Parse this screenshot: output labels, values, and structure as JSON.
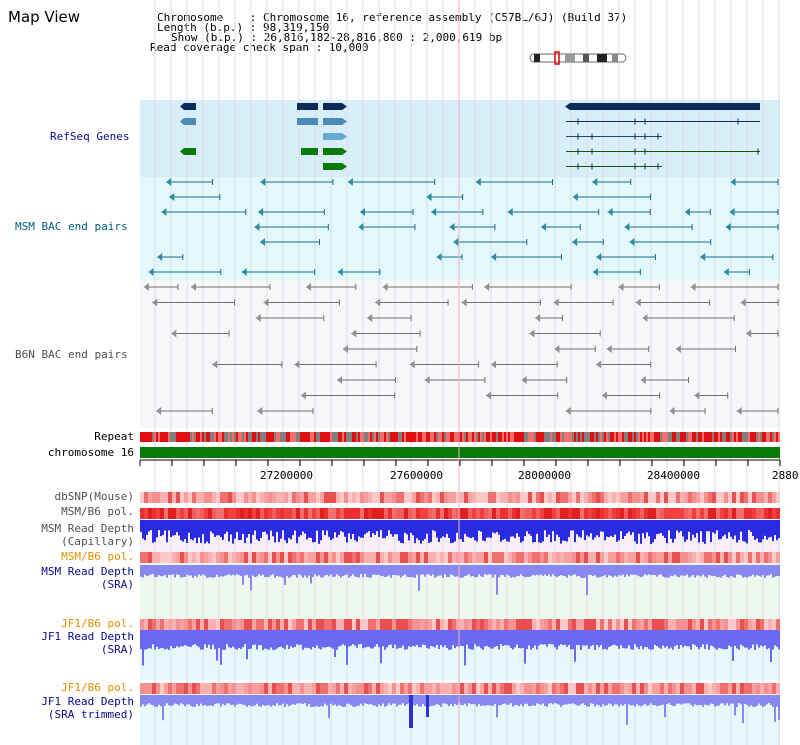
{
  "page": {
    "title": "Map View"
  },
  "info": {
    "chromosome_label": "Chromosome    : Chromosome 16, reference assembly (C57BL/6J) (Build 37)",
    "length_label": "Length (b.p.) : 98,319,150",
    "show_label": "Show (b.p.) : 26,816,182-28,816,800 : 2,000,619 bp",
    "coverage_label": "Read coverage check span : 10,000"
  },
  "tracks": {
    "refseq": "RefSeq Genes",
    "msm_bac": "MSM BAC end pairs",
    "b6n_bac": "B6N BAC end pairs",
    "repeat": "Repeat",
    "chromosome": "chromosome 16",
    "dbsnp": "dbSNP(Mouse)",
    "msm_b6_pol_1": "MSM/B6 pol.",
    "msm_depth_cap_1": "MSM Read Depth",
    "msm_depth_cap_2": "(Capillary)",
    "msm_b6_pol_2": "MSM/B6 pol.",
    "msm_depth_sra_1": "MSM Read Depth",
    "msm_depth_sra_2": "(SRA)",
    "jf1_b6_pol_1": "JF1/B6 pol.",
    "jf1_depth_sra_1": "JF1 Read Depth",
    "jf1_depth_sra_2": "(SRA)",
    "jf1_b6_pol_2": "JF1/B6 pol.",
    "jf1_depth_trim_1": "JF1 Read Depth",
    "jf1_depth_trim_2": "(SRA trimmed)"
  },
  "axis": {
    "ticks": [
      "27200000",
      "27600000",
      "28000000",
      "28400000",
      "2880"
    ]
  },
  "colors": {
    "refseq_bg": "#d8eef8",
    "msm_bac_bg": "#e2f8fa",
    "b6n_bac_bg": "#f7f7fa",
    "depth_bg_1": "#eef8ee",
    "depth_bg_2": "#e6f8fa",
    "label_navy": "#0a0a8c",
    "label_teal": "#006080",
    "label_gray": "#505050",
    "label_orange": "#e09000",
    "chrom_green": "#0a7a0a"
  }
}
